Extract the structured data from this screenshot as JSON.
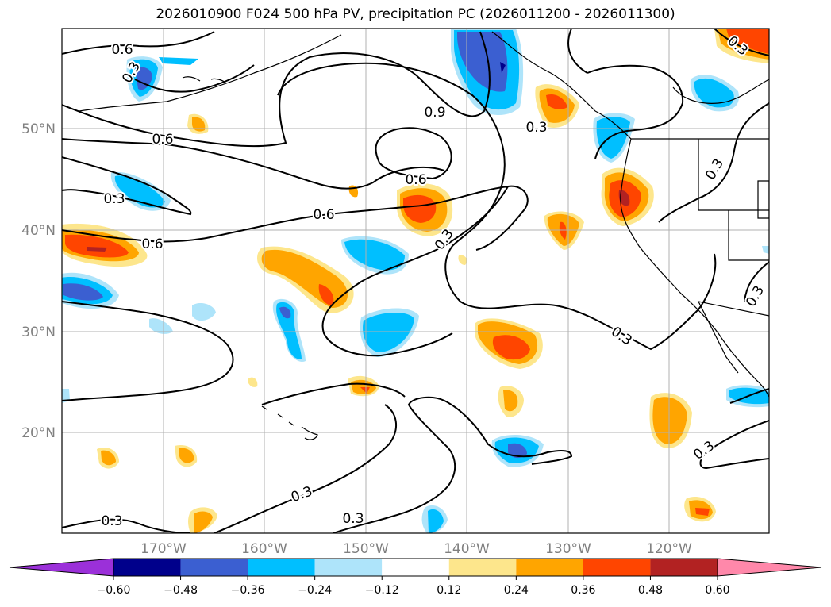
{
  "title": "2026010900 F024 500 hPa PV, precipitation PC (2026011200 - 2026011300)",
  "map": {
    "lat_ticks": [
      "50°N",
      "40°N",
      "30°N",
      "20°N"
    ],
    "lon_ticks": [
      "170°W",
      "160°W",
      "150°W",
      "140°W",
      "130°W",
      "120°W"
    ],
    "contour_labels": [
      "0.6",
      "0.3",
      "0.6",
      "0.3",
      "0.6",
      "0.6",
      "0.9",
      "0.6",
      "0.3",
      "0.3",
      "0.3",
      "0.3",
      "0.3",
      "0.3",
      "0.3",
      "0.3",
      "0.3"
    ],
    "colors": {
      "grid": "#b0b0b0",
      "coast": "#000000",
      "pos_light": "#fde68c",
      "pos_mid": "#ffa500",
      "pos_strong": "#ff4500",
      "pos_max": "#b22222",
      "neg_light": "#aee4fa",
      "neg_mid": "#00bfff",
      "neg_strong": "#3b5fd1",
      "neg_max": "#00008b"
    }
  },
  "colorbar": {
    "ticks": [
      "−0.60",
      "−0.48",
      "−0.36",
      "−0.24",
      "−0.12",
      "0.12",
      "0.24",
      "0.36",
      "0.48",
      "0.60"
    ],
    "colors": [
      "#9b30d9",
      "#00008b",
      "#3b5fd1",
      "#00bfff",
      "#aee4fa",
      "#ffffff",
      "#fde68c",
      "#ffa500",
      "#ff4500",
      "#b22222",
      "#ff88aa"
    ]
  }
}
